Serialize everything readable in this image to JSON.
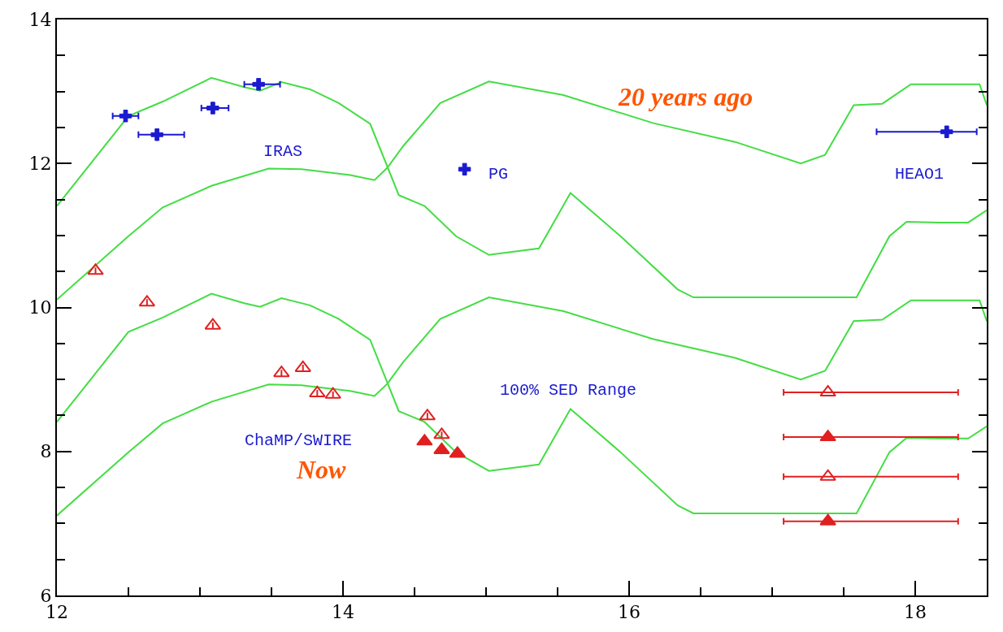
{
  "chart_data": {
    "type": "line",
    "xlim": [
      12,
      18.5
    ],
    "ylim": [
      6,
      14
    ],
    "xticks": [
      12,
      14,
      16,
      18
    ],
    "yticks": [
      6,
      8,
      10,
      12,
      14
    ],
    "series": [
      {
        "color": "#44dd44",
        "x": [
          12,
          12.5,
          12.74,
          13.08,
          13.31,
          13.42,
          13.57,
          13.77,
          13.97,
          14.19,
          14.39,
          14.57,
          14.79,
          15.02,
          15.37,
          15.59,
          15.94,
          16.34,
          16.45,
          17.59,
          17.82,
          17.94,
          18.17,
          18.37,
          18.5
        ],
        "values": [
          11.41,
          12.66,
          12.86,
          13.19,
          13.06,
          13.01,
          13.13,
          13.03,
          12.84,
          12.55,
          11.56,
          11.41,
          10.99,
          10.73,
          10.82,
          11.59,
          10.99,
          10.25,
          10.14,
          10.14,
          10.99,
          11.19,
          11.18,
          11.18,
          11.35
        ]
      },
      {
        "color": "#44dd44",
        "x": [
          12,
          12.5,
          12.74,
          13.08,
          13.48,
          13.71,
          14.05,
          14.22,
          14.31,
          14.42,
          14.68,
          15.02,
          15.54,
          16.17,
          16.74,
          17.2,
          17.37,
          17.57,
          17.77,
          17.97,
          18.45,
          18.5
        ],
        "values": [
          10.11,
          10.99,
          11.39,
          11.69,
          11.93,
          11.92,
          11.84,
          11.77,
          11.94,
          12.24,
          12.84,
          13.14,
          12.95,
          12.56,
          12.3,
          12.0,
          12.12,
          12.81,
          12.83,
          13.1,
          13.1,
          12.81
        ]
      },
      {
        "color": "#44dd44",
        "x": [
          12,
          12.5,
          12.74,
          13.08,
          13.31,
          13.42,
          13.57,
          13.77,
          13.97,
          14.19,
          14.39,
          14.57,
          14.79,
          15.02,
          15.37,
          15.59,
          15.94,
          16.34,
          16.45,
          17.59,
          17.82,
          17.94,
          18.17,
          18.37,
          18.5
        ],
        "values": [
          8.41,
          9.66,
          9.86,
          10.19,
          10.06,
          10.01,
          10.13,
          10.03,
          9.84,
          9.55,
          8.56,
          8.41,
          7.99,
          7.73,
          7.82,
          8.59,
          7.99,
          7.25,
          7.14,
          7.14,
          7.99,
          8.19,
          8.18,
          8.18,
          8.35
        ]
      },
      {
        "color": "#44dd44",
        "x": [
          12,
          12.5,
          12.74,
          13.08,
          13.48,
          13.71,
          14.05,
          14.22,
          14.31,
          14.42,
          14.68,
          15.02,
          15.54,
          16.17,
          16.74,
          17.2,
          17.37,
          17.57,
          17.77,
          17.97,
          18.45,
          18.5
        ],
        "values": [
          7.11,
          7.99,
          8.39,
          8.69,
          8.93,
          8.92,
          8.84,
          8.77,
          8.94,
          9.24,
          9.84,
          10.14,
          9.95,
          9.56,
          9.3,
          9.0,
          9.12,
          9.81,
          9.83,
          10.1,
          10.1,
          9.81
        ]
      },
      {
        "type": "scatter",
        "color": "#1a1ad0",
        "marker": "cross",
        "x": [
          12.48,
          12.7,
          13.09,
          13.41,
          18.22
        ],
        "values": [
          12.66,
          12.4,
          12.77,
          13.1,
          12.44
        ],
        "xerrors": [
          [
            12.39,
            12.57
          ],
          [
            12.57,
            12.89
          ],
          [
            13.01,
            13.2
          ],
          [
            13.31,
            13.56
          ],
          [
            17.73,
            18.43
          ]
        ]
      },
      {
        "type": "scatter",
        "color": "#1a1ad0",
        "marker": "cross",
        "x": [
          14.85
        ],
        "values": [
          11.92
        ]
      },
      {
        "type": "scatter",
        "color": "#e02020",
        "marker": "triangle-open",
        "x": [
          12.27,
          12.63,
          13.09,
          13.57,
          13.72,
          13.82,
          13.93,
          14.59,
          14.69,
          17.39,
          17.39
        ],
        "values": [
          10.51,
          10.07,
          9.75,
          9.09,
          9.16,
          8.81,
          8.79,
          8.49,
          8.23,
          8.82,
          7.65
        ],
        "xerrors": [
          null,
          null,
          null,
          null,
          null,
          null,
          null,
          null,
          null,
          [
            17.08,
            18.3
          ],
          [
            17.08,
            18.3
          ]
        ]
      },
      {
        "type": "scatter",
        "color": "#e02020",
        "marker": "triangle",
        "x": [
          14.57,
          14.69,
          14.8,
          17.39,
          17.39
        ],
        "values": [
          8.14,
          8.02,
          7.97,
          8.2,
          7.03
        ],
        "xerrors": [
          null,
          null,
          null,
          [
            17.08,
            18.3
          ],
          [
            17.08,
            18.3
          ]
        ]
      }
    ],
    "annotations": [
      "IRAS",
      "PG",
      "HEAO1",
      "100% SED Range",
      "ChaMP/SWIRE",
      "20 years ago",
      "Now"
    ]
  }
}
